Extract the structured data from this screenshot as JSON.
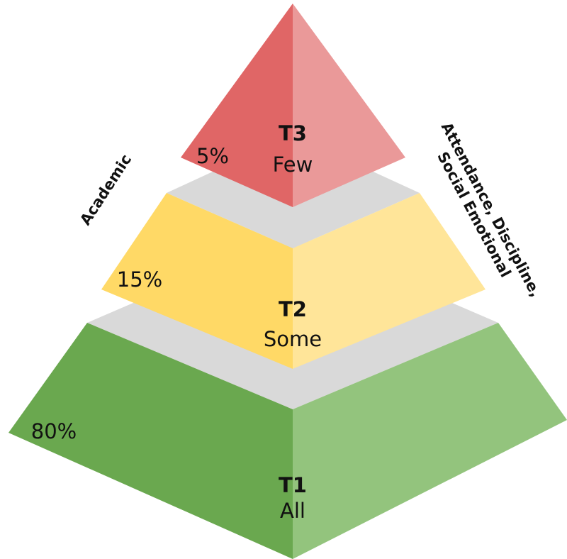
{
  "tiers": [
    {
      "name": "T3",
      "label": "Few",
      "share": "5%"
    },
    {
      "name": "T2",
      "label": "Some",
      "share": "15%"
    },
    {
      "name": "T1",
      "label": "All",
      "share": "80%"
    }
  ],
  "side_labels": {
    "left": "Academic",
    "right": [
      "Attendance, Discipline,",
      "Social Emotional"
    ]
  }
}
